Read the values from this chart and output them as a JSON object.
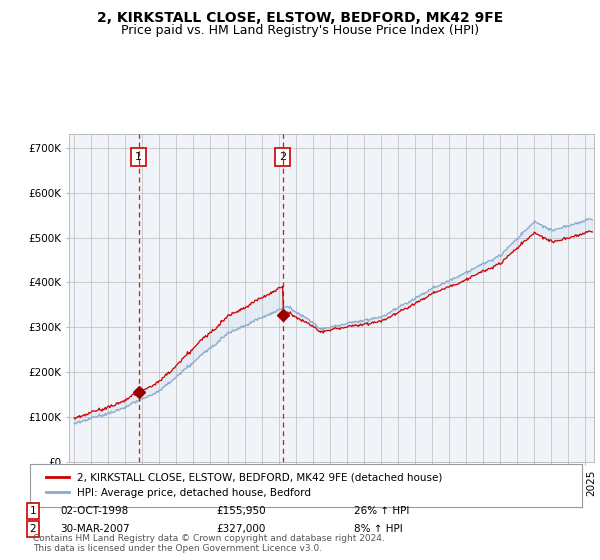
{
  "title": "2, KIRKSTALL CLOSE, ELSTOW, BEDFORD, MK42 9FE",
  "subtitle": "Price paid vs. HM Land Registry's House Price Index (HPI)",
  "ylim": [
    0,
    730000
  ],
  "xlim_start": 1994.7,
  "xlim_end": 2025.5,
  "sale1_year": 1998.78,
  "sale1_price": 155950,
  "sale1_label": "1",
  "sale1_date": "02-OCT-1998",
  "sale1_hpi": "26% ↑ HPI",
  "sale2_year": 2007.25,
  "sale2_price": 327000,
  "sale2_label": "2",
  "sale2_date": "30-MAR-2007",
  "sale2_hpi": "8% ↑ HPI",
  "line_color_price": "#cc0000",
  "line_color_hpi": "#88aacc",
  "vline_color": "#cc0000",
  "marker_color": "#990000",
  "box_color": "#cc0000",
  "background_color": "#ffffff",
  "plot_bg_color": "#f0f4f8",
  "shade_color": "#ccddf0",
  "legend_label1": "2, KIRKSTALL CLOSE, ELSTOW, BEDFORD, MK42 9FE (detached house)",
  "legend_label2": "HPI: Average price, detached house, Bedford",
  "footer": "Contains HM Land Registry data © Crown copyright and database right 2024.\nThis data is licensed under the Open Government Licence v3.0.",
  "title_fontsize": 10,
  "subtitle_fontsize": 9,
  "tick_fontsize": 7.5,
  "legend_fontsize": 7.5,
  "footer_fontsize": 6.5
}
